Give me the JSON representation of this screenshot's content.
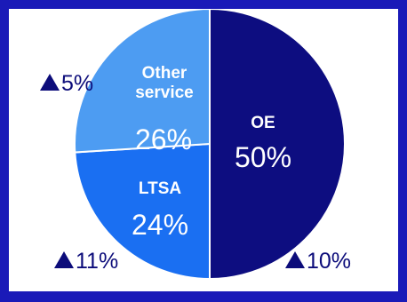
{
  "chart_data": {
    "type": "pie",
    "title": "",
    "slices": [
      {
        "label": "OE",
        "value": 50,
        "value_label": "50%",
        "color": "#0d0d80",
        "change": "10%",
        "change_direction": "up"
      },
      {
        "label": "LTSA",
        "value": 24,
        "value_label": "24%",
        "color": "#1a6ff2",
        "change": "11%",
        "change_direction": "up"
      },
      {
        "label": "Other service",
        "label_lines": [
          "Other",
          "service"
        ],
        "value": 26,
        "value_label": "26%",
        "color": "#4d9cf2",
        "change": "5%",
        "change_direction": "up"
      }
    ],
    "frame_color": "#1a1ab8"
  }
}
